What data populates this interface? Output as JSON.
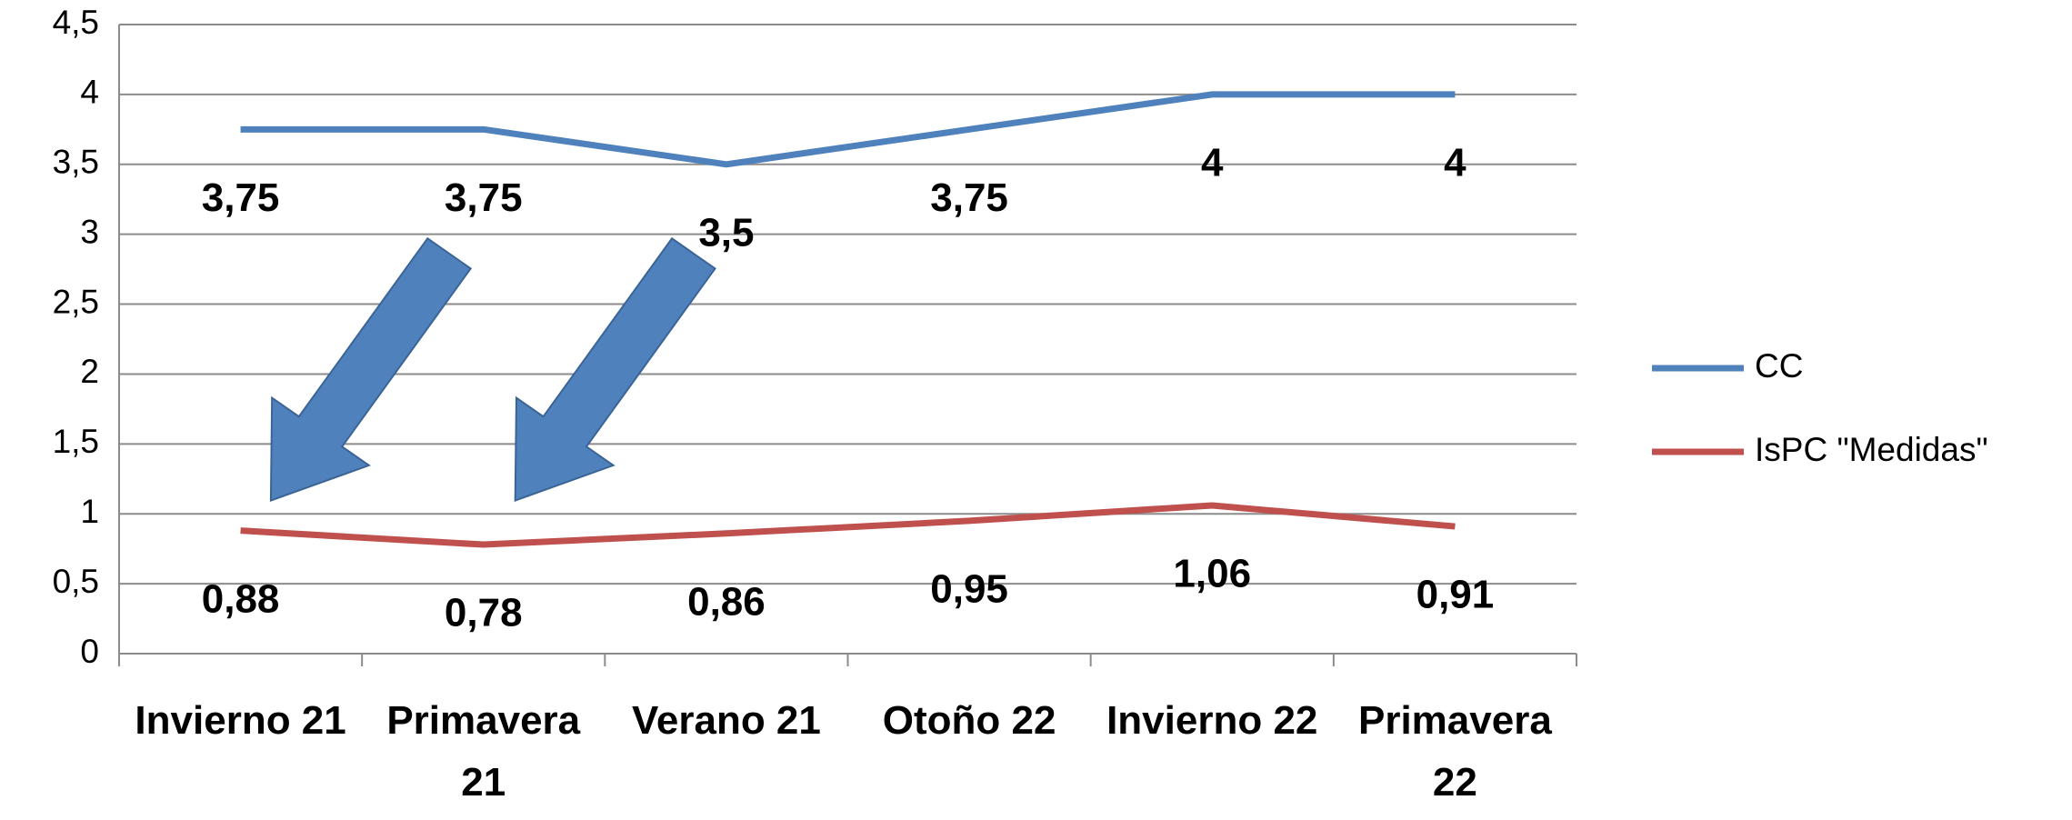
{
  "chart_data": {
    "type": "line",
    "categories": [
      "Invierno 21",
      "Primavera 21",
      "Verano 21",
      "Otoño 22",
      "Invierno 22",
      "Primavera 22"
    ],
    "series": [
      {
        "name": "CC",
        "color": "#4f81bd",
        "values": [
          3.75,
          3.75,
          3.5,
          3.75,
          4,
          4
        ],
        "value_labels": [
          "3,75",
          "3,75",
          "3,5",
          "3,75",
          "4",
          "4"
        ]
      },
      {
        "name": "IsPC \"Medidas\"",
        "color": "#c0504d",
        "values": [
          0.88,
          0.78,
          0.86,
          0.95,
          1.06,
          0.91
        ],
        "value_labels": [
          "0,88",
          "0,78",
          "0,86",
          "0,95",
          "1,06",
          "0,91"
        ]
      }
    ],
    "ylim": [
      0,
      4.5
    ],
    "yticks": [
      0,
      {
        "value": 0.5,
        "label": "0,5"
      },
      1,
      {
        "value": 1.5,
        "label": "1,5"
      },
      2,
      {
        "value": 2.5,
        "label": "2,5"
      },
      3,
      {
        "value": 3.5,
        "label": "3,5"
      },
      4,
      {
        "value": 4.5,
        "label": "4,5"
      }
    ],
    "grid": true,
    "legend": "right"
  }
}
